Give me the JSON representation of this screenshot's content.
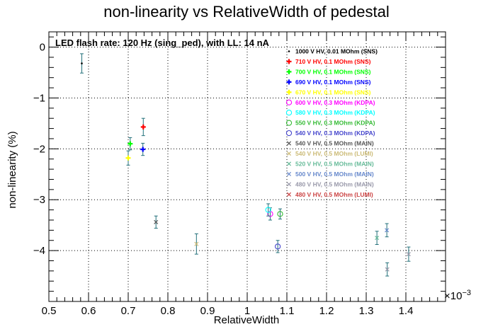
{
  "chart_data": {
    "type": "scatter",
    "title": "non-linearity vs RelativeWidth of pedestal",
    "xlabel": "RelativeWidth",
    "ylabel": "non-linearity (%)",
    "x_multiplier_label": "×10",
    "x_multiplier_exponent": "−3",
    "annotation": "LED flash rate: 120 Hz  (sing_ped), with LL: 14 nA",
    "xlim": [
      0.5,
      1.5
    ],
    "ylim": [
      -5,
      0.3
    ],
    "x_ticks": [
      {
        "v": 0.5,
        "label": "0.5"
      },
      {
        "v": 0.6,
        "label": "0.6"
      },
      {
        "v": 0.7,
        "label": "0.7"
      },
      {
        "v": 0.8,
        "label": "0.8"
      },
      {
        "v": 0.9,
        "label": "0.9"
      },
      {
        "v": 1.0,
        "label": "1"
      },
      {
        "v": 1.1,
        "label": "1.1"
      },
      {
        "v": 1.2,
        "label": "1.2"
      },
      {
        "v": 1.3,
        "label": "1.3"
      },
      {
        "v": 1.4,
        "label": "1.4"
      }
    ],
    "y_ticks": [
      {
        "v": 0,
        "label": "0"
      },
      {
        "v": -1,
        "label": "−1"
      },
      {
        "v": -2,
        "label": "−2"
      },
      {
        "v": -3,
        "label": "−3"
      },
      {
        "v": -4,
        "label": "−4"
      }
    ],
    "grid": true,
    "legend_position": "top-right",
    "series": [
      {
        "name": "1000 V HV, 0.01 MOhm (SNS)",
        "color": "#000000",
        "marker": "dot",
        "points": [
          {
            "x": 0.583,
            "y": -0.32,
            "yerr": 0.19
          }
        ]
      },
      {
        "name": "710 V HV, 0.1 MOhm (SNS)",
        "color": "#ff0000",
        "marker": "plus",
        "points": [
          {
            "x": 0.738,
            "y": -1.57,
            "yerr": 0.17
          }
        ]
      },
      {
        "name": "700 V HV, 0.1 MOhm (SNS)",
        "color": "#00ff00",
        "marker": "plus",
        "points": [
          {
            "x": 0.705,
            "y": -1.9,
            "yerr": 0.12
          }
        ]
      },
      {
        "name": "690 V HV, 0.1 MOhm (SNS)",
        "color": "#0000ff",
        "marker": "plus",
        "points": [
          {
            "x": 0.737,
            "y": -2.01,
            "yerr": 0.12
          }
        ]
      },
      {
        "name": "670 V HV, 0.1 MOhm (SNS)",
        "color": "#ffff00",
        "marker": "plus",
        "points": [
          {
            "x": 0.7,
            "y": -2.18,
            "yerr": 0.14
          }
        ]
      },
      {
        "name": "600 V HV, 0.3 MOhm (KDPA)",
        "color": "#ff00ff",
        "marker": "circle",
        "points": [
          {
            "x": 1.058,
            "y": -3.28,
            "yerr": 0.12
          }
        ]
      },
      {
        "name": "580 V HV, 0.3 MOhm (KDPA)",
        "color": "#00ffff",
        "marker": "circle",
        "points": [
          {
            "x": 1.053,
            "y": -3.2,
            "yerr": 0.12
          }
        ]
      },
      {
        "name": "550 V HV, 0.3 MOhm (KDPA)",
        "color": "#33bb33",
        "marker": "circle",
        "points": [
          {
            "x": 1.083,
            "y": -3.28,
            "yerr": 0.1
          }
        ]
      },
      {
        "name": "540 V HV, 0.3 MOhm (KDPA)",
        "color": "#4444cc",
        "marker": "circle",
        "points": [
          {
            "x": 1.077,
            "y": -3.92,
            "yerr": 0.12
          }
        ]
      },
      {
        "name": "540 V HV, 0.5 MOhm (MAIN)",
        "color": "#555555",
        "marker": "cross",
        "points": [
          {
            "x": 0.77,
            "y": -3.44,
            "yerr": 0.12
          }
        ]
      },
      {
        "name": "540 V HV, 0.5 MOhm (LUMI)",
        "color": "#ccbb77",
        "marker": "cross",
        "points": [
          {
            "x": 0.872,
            "y": -3.87,
            "yerr": 0.2
          }
        ]
      },
      {
        "name": "520 V HV, 0.5 MOhm (MAIN)",
        "color": "#66bb99",
        "marker": "cross",
        "points": [
          {
            "x": 1.327,
            "y": -3.75,
            "yerr": 0.13
          }
        ]
      },
      {
        "name": "500 V HV, 0.5 MOhm (MAIN)",
        "color": "#6688cc",
        "marker": "cross",
        "points": [
          {
            "x": 1.352,
            "y": -3.6,
            "yerr": 0.13
          }
        ]
      },
      {
        "name": "480 V HV, 0.5 MOhm (MAIN)",
        "color": "#9999aa",
        "marker": "cross",
        "points": [
          {
            "x": 1.353,
            "y": -4.37,
            "yerr": 0.13
          },
          {
            "x": 1.407,
            "y": -4.07,
            "yerr": 0.14
          }
        ]
      },
      {
        "name": "480 V HV, 0.5 MOhm (LUMI)",
        "color": "#cc4444",
        "marker": "cross",
        "points": []
      }
    ]
  }
}
